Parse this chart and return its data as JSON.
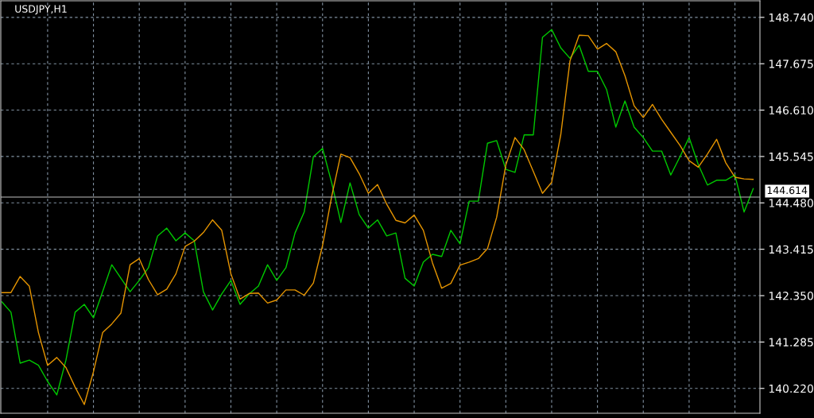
{
  "chart_data": {
    "type": "line",
    "title": "USDJPY,H1",
    "categories": [
      null,
      null,
      null,
      null,
      null,
      null,
      null,
      null,
      null,
      null,
      null,
      null,
      null,
      null,
      null,
      null,
      null,
      null,
      null,
      null,
      null,
      null,
      null,
      null,
      null,
      null,
      null,
      null,
      null,
      null,
      null,
      null,
      null,
      null,
      null,
      null,
      null,
      null,
      null,
      null,
      null,
      null,
      null,
      null,
      null,
      null,
      null,
      null,
      null,
      null,
      null,
      null,
      null,
      null,
      null,
      null,
      null,
      null,
      null,
      null,
      null,
      null,
      null,
      null,
      null,
      null,
      null,
      null,
      null,
      null,
      null,
      null,
      null,
      null,
      null,
      null,
      null,
      null,
      null,
      null,
      null,
      null,
      null
    ],
    "ylim": [
      139.65,
      149.12
    ],
    "yticks": [
      {
        "value": 140.22,
        "label": "140.220"
      },
      {
        "value": 141.285,
        "label": "141.285"
      },
      {
        "value": 142.35,
        "label": "142.350"
      },
      {
        "value": 143.415,
        "label": "143.415"
      },
      {
        "value": 144.48,
        "label": "144.480"
      },
      {
        "value": 145.545,
        "label": "145.545"
      },
      {
        "value": 146.61,
        "label": "146.610"
      },
      {
        "value": 147.675,
        "label": "147.675"
      },
      {
        "value": 148.74,
        "label": "148.740"
      }
    ],
    "tick_labels": "y",
    "grid": true,
    "series": [
      {
        "color": "#00c800",
        "values": [
          142.21,
          141.97,
          140.8,
          140.87,
          140.75,
          140.38,
          140.07,
          140.87,
          141.97,
          142.15,
          141.84,
          142.44,
          143.06,
          142.75,
          142.44,
          142.7,
          142.99,
          143.72,
          143.9,
          143.61,
          143.79,
          143.61,
          142.44,
          142.02,
          142.39,
          142.7,
          142.15,
          142.39,
          142.57,
          143.06,
          142.7,
          142.99,
          143.79,
          144.27,
          145.54,
          145.73,
          144.94,
          144.03,
          144.94,
          144.21,
          143.9,
          144.09,
          143.72,
          143.79,
          142.75,
          142.57,
          143.12,
          143.3,
          143.25,
          143.85,
          143.54,
          144.52,
          144.52,
          145.85,
          145.91,
          145.25,
          145.18,
          146.04,
          146.04,
          148.28,
          148.46,
          148.04,
          147.8,
          148.1,
          147.5,
          147.5,
          147.08,
          146.22,
          146.82,
          146.22,
          145.98,
          145.67,
          145.67,
          145.12,
          145.54,
          145.98,
          145.36,
          144.89,
          145.0,
          145.0,
          145.12,
          144.27,
          144.81
        ]
      },
      {
        "color": "#e69500",
        "values": [
          142.42,
          142.42,
          142.79,
          142.57,
          141.5,
          140.75,
          140.93,
          140.7,
          140.25,
          139.85,
          140.6,
          141.5,
          141.7,
          141.95,
          143.06,
          143.2,
          142.72,
          142.37,
          142.5,
          142.85,
          143.48,
          143.6,
          143.8,
          144.09,
          143.85,
          142.85,
          142.27,
          142.4,
          142.41,
          142.18,
          142.25,
          142.48,
          142.48,
          142.36,
          142.64,
          143.5,
          144.63,
          145.6,
          145.52,
          145.15,
          144.7,
          144.9,
          144.45,
          144.08,
          144.02,
          144.2,
          143.85,
          143.1,
          142.52,
          142.63,
          143.05,
          143.12,
          143.2,
          143.43,
          144.15,
          145.35,
          145.98,
          145.7,
          145.2,
          144.7,
          144.95,
          146.05,
          147.74,
          148.33,
          148.32,
          148.01,
          148.14,
          147.95,
          147.4,
          146.71,
          146.44,
          146.74,
          146.4,
          146.1,
          145.8,
          145.45,
          145.3,
          145.6,
          145.94,
          145.4,
          145.07,
          145.03,
          145.02
        ]
      }
    ],
    "ref_lines": [
      {
        "axis": "y",
        "value": 144.614,
        "label": "144.614",
        "color": "#c0c0c0",
        "line_style": "solid"
      }
    ]
  }
}
